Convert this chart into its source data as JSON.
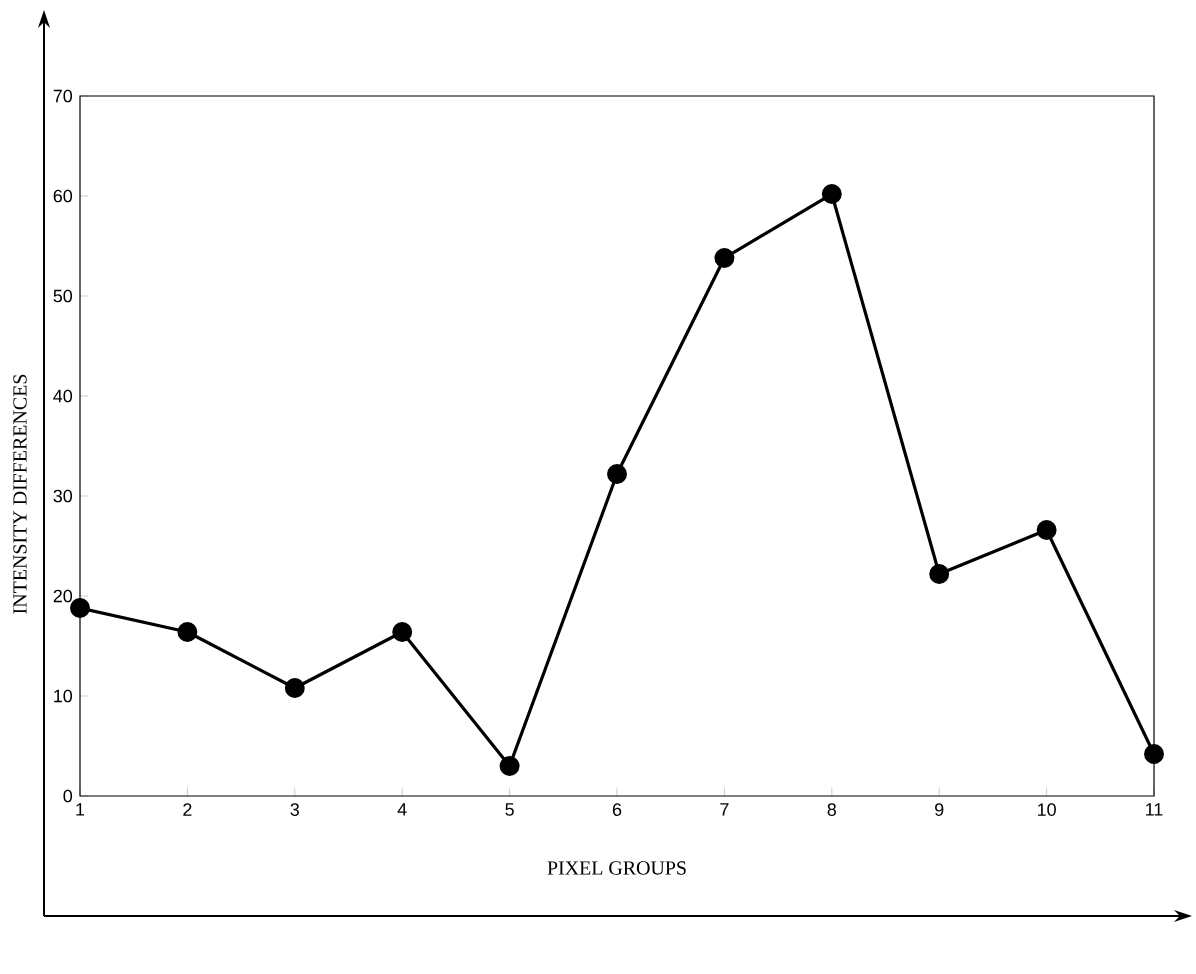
{
  "chart_data": {
    "type": "line",
    "xlabel": "PIXEL GROUPS",
    "ylabel": "INTENSITY DIFFERENCES",
    "x": [
      1,
      2,
      3,
      4,
      5,
      6,
      7,
      8,
      9,
      10,
      11
    ],
    "series": [
      {
        "color": "#000000",
        "values": [
          18.8,
          16.4,
          10.8,
          16.4,
          3,
          32.2,
          53.8,
          60.2,
          22.2,
          26.6,
          4.2
        ]
      }
    ],
    "xlim": [
      1,
      11
    ],
    "xticks": [
      1,
      2,
      3,
      4,
      5,
      6,
      7,
      8,
      9,
      10,
      11
    ],
    "ylim": [
      0,
      70
    ],
    "yticks": [
      0,
      10,
      20,
      30,
      40,
      50,
      60,
      70
    ],
    "grid": false,
    "marker": "circle",
    "line_style": "solid"
  }
}
